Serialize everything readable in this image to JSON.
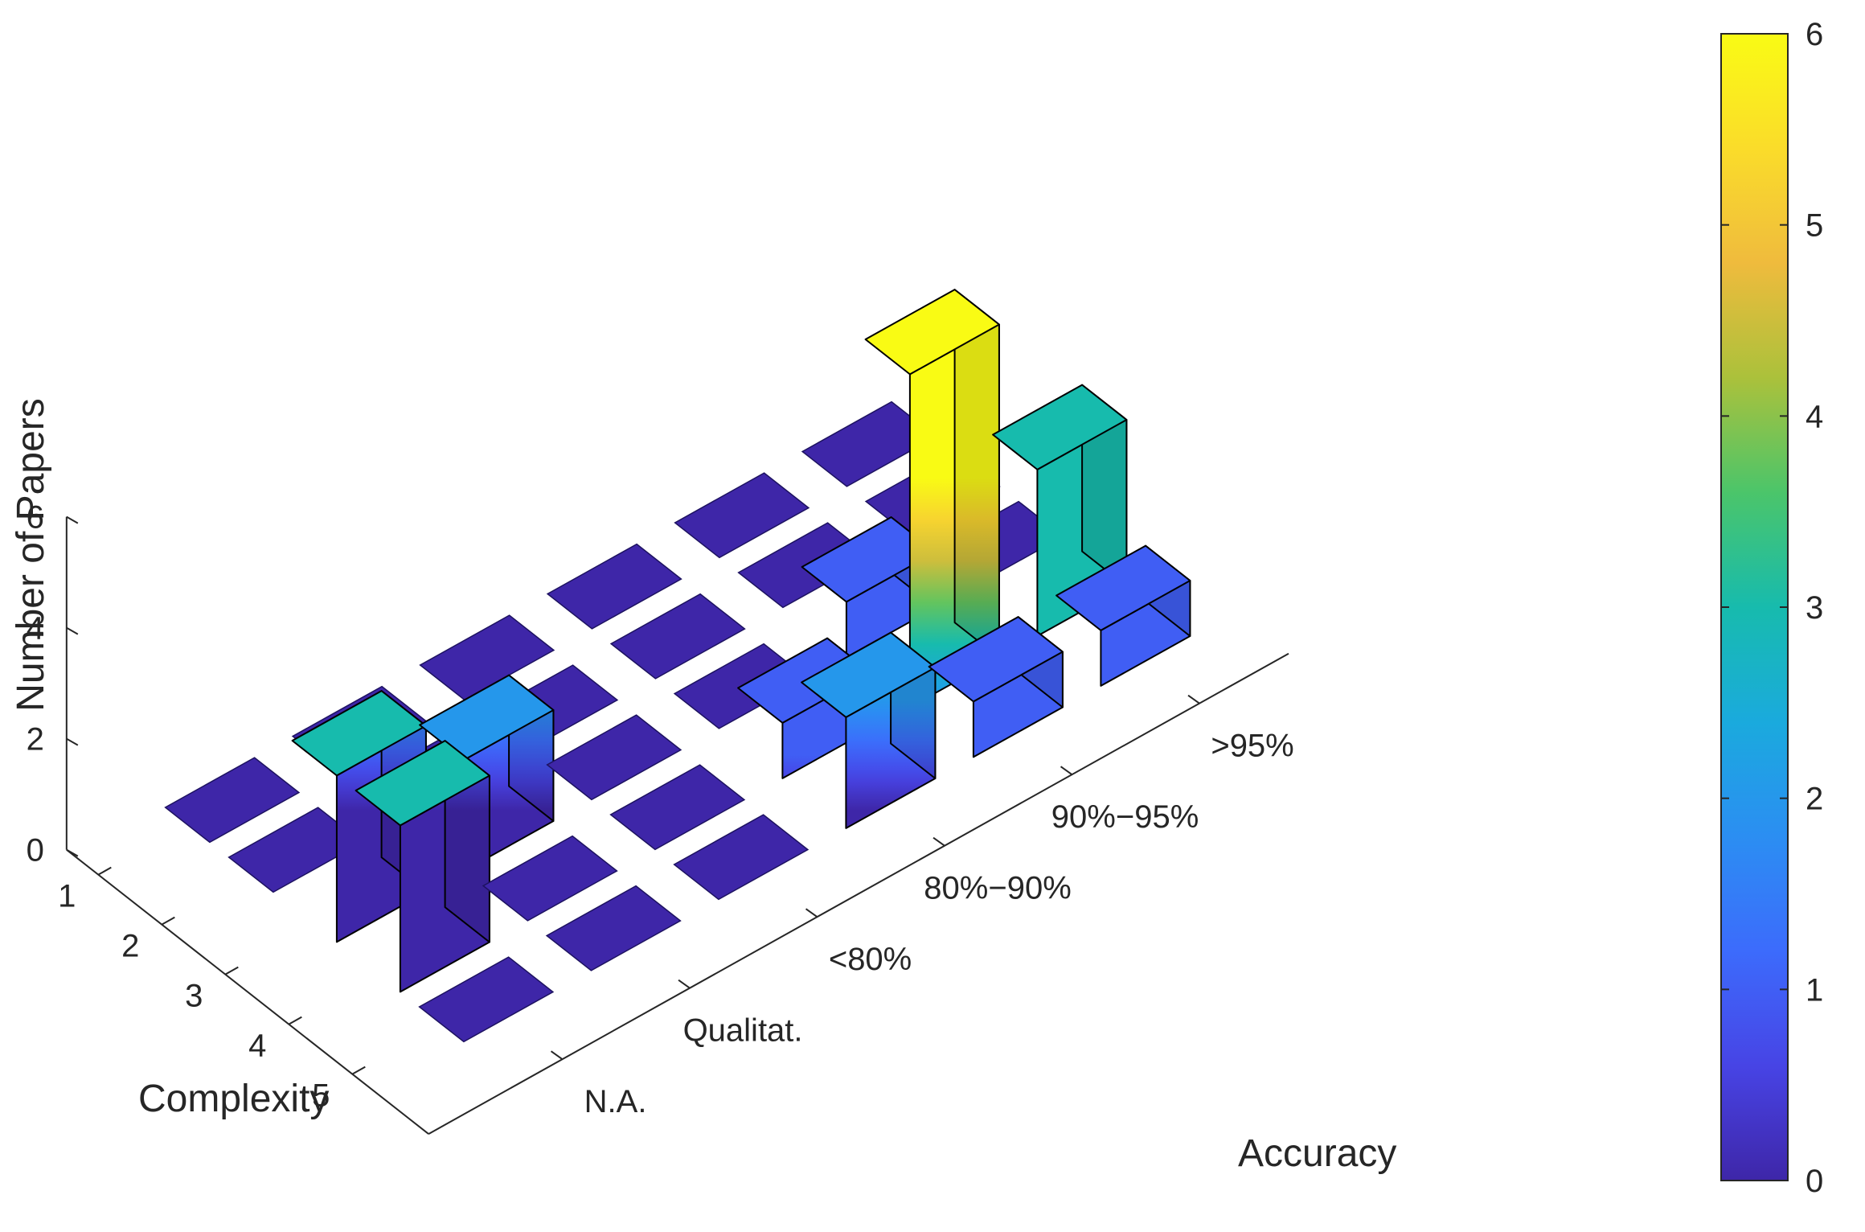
{
  "chart_data": {
    "type": "bar3d",
    "title": "",
    "xlabel": "Accuracy",
    "ylabel": "Complexity",
    "zlabel": "Number of Papers",
    "x_categories": [
      "N.A.",
      "Qualitat.",
      "<80%",
      "80%−90%",
      "90%−95%",
      ">95%"
    ],
    "y_categories": [
      "1",
      "2",
      "3",
      "4",
      "5"
    ],
    "z_ticks": [
      "0",
      "2",
      "4",
      "6"
    ],
    "zlim": [
      0,
      6
    ],
    "colormap": "parula",
    "colorbar": {
      "ticks": [
        "0",
        "1",
        "2",
        "3",
        "4",
        "5",
        "6"
      ],
      "range": [
        0,
        6
      ],
      "placement": "right"
    },
    "grid": false,
    "values": [
      [
        0,
        0,
        0,
        0,
        0,
        0
      ],
      [
        0,
        0,
        0,
        0,
        0,
        0
      ],
      [
        3,
        2,
        0,
        0,
        1,
        0
      ],
      [
        3,
        0,
        0,
        1,
        6,
        3
      ],
      [
        0,
        0,
        0,
        2,
        1,
        1
      ]
    ],
    "colors": {
      "parula_stops": [
        "#3e26a8",
        "#4744e5",
        "#3c6bfc",
        "#2b8ef2",
        "#1aaadd",
        "#17bbad",
        "#4bc56a",
        "#abc13b",
        "#efbb3d",
        "#fadc2a",
        "#f9fb14"
      ],
      "edge": "#000000",
      "axis": "#262626"
    }
  }
}
